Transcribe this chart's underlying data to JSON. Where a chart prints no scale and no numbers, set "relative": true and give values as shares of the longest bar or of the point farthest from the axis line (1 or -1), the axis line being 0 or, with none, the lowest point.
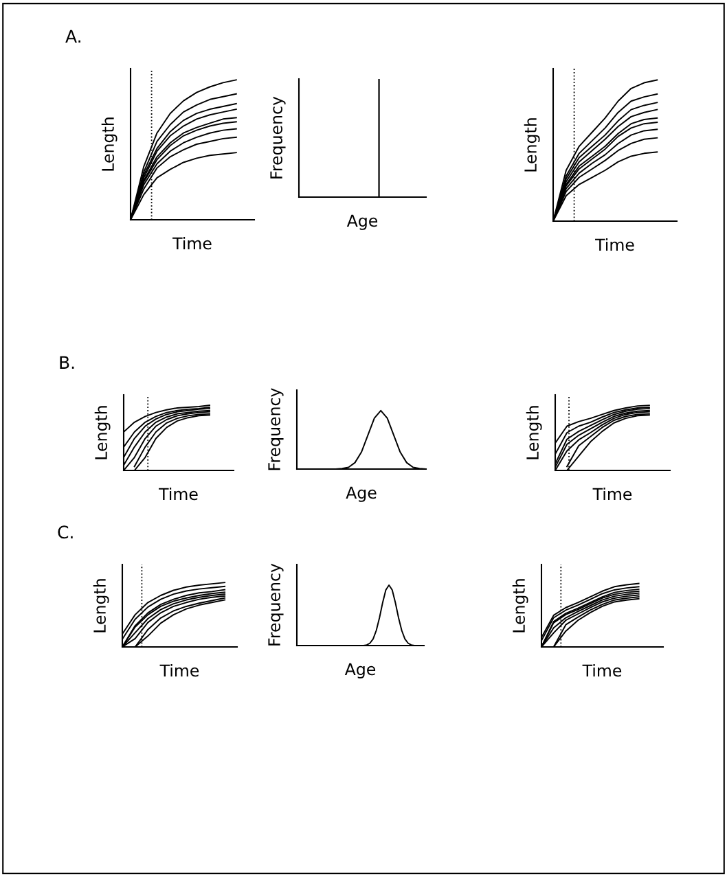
{
  "chart_data": [
    {
      "type": "line",
      "title": "A.",
      "xlabel": "Time",
      "ylabel": "Length",
      "relative": true,
      "categories": [
        null,
        null,
        null,
        null,
        null,
        null,
        null,
        null,
        null
      ],
      "series": [
        {
          "color": "#000000",
          "values": [
            0,
            0.38,
            0.62,
            0.76,
            0.85,
            0.91,
            0.95,
            0.98,
            1
          ]
        },
        {
          "color": "#000000",
          "values": [
            0,
            0.34,
            0.56,
            0.68,
            0.77,
            0.82,
            0.86,
            0.88,
            0.9
          ]
        },
        {
          "color": "#000000",
          "values": [
            0,
            0.32,
            0.51,
            0.63,
            0.71,
            0.76,
            0.79,
            0.81,
            0.83
          ]
        },
        {
          "color": "#000000",
          "values": [
            0,
            0.3,
            0.49,
            0.6,
            0.67,
            0.72,
            0.75,
            0.77,
            0.79
          ]
        },
        {
          "color": "#000000",
          "values": [
            0,
            0.28,
            0.45,
            0.55,
            0.62,
            0.66,
            0.69,
            0.72,
            0.73
          ]
        },
        {
          "color": "#000000",
          "values": [
            0,
            0.27,
            0.43,
            0.53,
            0.6,
            0.64,
            0.67,
            0.69,
            0.7
          ]
        },
        {
          "color": "#000000",
          "values": [
            0,
            0.25,
            0.4,
            0.49,
            0.55,
            0.59,
            0.62,
            0.64,
            0.65
          ]
        },
        {
          "color": "#000000",
          "values": [
            0,
            0.22,
            0.37,
            0.45,
            0.5,
            0.54,
            0.56,
            0.58,
            0.59
          ]
        },
        {
          "color": "#000000",
          "values": [
            0,
            0.18,
            0.3,
            0.36,
            0.41,
            0.44,
            0.46,
            0.47,
            0.48
          ]
        }
      ]
    },
    {
      "type": "bar",
      "xlabel": "Age",
      "ylabel": "Frequency",
      "relative": true,
      "categories": [
        null
      ],
      "values": [
        1
      ],
      "color": "#000000"
    },
    {
      "type": "line",
      "xlabel": "Time",
      "ylabel": "Length",
      "relative": true,
      "categories": [
        null,
        null,
        null,
        null,
        null,
        null,
        null,
        null,
        null
      ],
      "series": [
        {
          "color": "#000000",
          "values": [
            0,
            0.36,
            0.53,
            0.63,
            0.73,
            0.85,
            0.94,
            0.98,
            1
          ]
        },
        {
          "color": "#000000",
          "values": [
            0,
            0.32,
            0.48,
            0.57,
            0.66,
            0.77,
            0.85,
            0.88,
            0.9
          ]
        },
        {
          "color": "#000000",
          "values": [
            0,
            0.3,
            0.45,
            0.53,
            0.61,
            0.71,
            0.79,
            0.82,
            0.84
          ]
        },
        {
          "color": "#000000",
          "values": [
            0,
            0.28,
            0.42,
            0.5,
            0.58,
            0.67,
            0.74,
            0.77,
            0.79
          ]
        },
        {
          "color": "#000000",
          "values": [
            0,
            0.26,
            0.39,
            0.46,
            0.53,
            0.62,
            0.69,
            0.72,
            0.73
          ]
        },
        {
          "color": "#000000",
          "values": [
            0,
            0.25,
            0.37,
            0.44,
            0.51,
            0.6,
            0.66,
            0.69,
            0.7
          ]
        },
        {
          "color": "#000000",
          "values": [
            0,
            0.23,
            0.34,
            0.41,
            0.47,
            0.55,
            0.61,
            0.64,
            0.65
          ]
        },
        {
          "color": "#000000",
          "values": [
            0,
            0.21,
            0.31,
            0.37,
            0.43,
            0.5,
            0.55,
            0.58,
            0.59
          ]
        },
        {
          "color": "#000000",
          "values": [
            0,
            0.18,
            0.26,
            0.31,
            0.36,
            0.42,
            0.46,
            0.48,
            0.49
          ]
        }
      ]
    },
    {
      "type": "line",
      "title": "B.",
      "xlabel": "Time",
      "ylabel": "Length",
      "relative": true,
      "categories": [
        null,
        null,
        null,
        null,
        null,
        null,
        null,
        null,
        null
      ],
      "series": [
        {
          "color": "#000000",
          "values": [
            0.59,
            0.74,
            0.83,
            0.89,
            0.93,
            0.96,
            0.97,
            0.98,
            1
          ]
        },
        {
          "color": "#000000",
          "values": [
            0.36,
            0.59,
            0.74,
            0.83,
            0.89,
            0.92,
            0.94,
            0.95,
            0.97
          ]
        },
        {
          "color": "#000000",
          "values": [
            0.2,
            0.49,
            0.68,
            0.79,
            0.86,
            0.9,
            0.92,
            0.94,
            0.95
          ]
        },
        {
          "color": "#000000",
          "values": [
            0.08,
            0.36,
            0.59,
            0.74,
            0.82,
            0.87,
            0.89,
            0.91,
            0.92
          ]
        },
        {
          "color": "#000000",
          "values": [
            0,
            0.2,
            0.49,
            0.68,
            0.78,
            0.84,
            0.87,
            0.89,
            0.9
          ]
        },
        {
          "color": "#000000",
          "values": [
            null,
            0.06,
            0.36,
            0.59,
            0.73,
            0.8,
            0.84,
            0.86,
            0.87
          ]
        },
        {
          "color": "#000000",
          "values": [
            null,
            0,
            0.2,
            0.49,
            0.66,
            0.76,
            0.81,
            0.84,
            0.85
          ]
        }
      ]
    },
    {
      "type": "line",
      "xlabel": "Age",
      "ylabel": "Frequency",
      "relative": true,
      "categories": [
        null,
        null,
        null,
        null,
        null,
        null,
        null,
        null,
        null,
        null,
        null,
        null,
        null,
        null,
        null,
        null,
        null,
        null,
        null,
        null,
        null
      ],
      "series": [
        {
          "color": "#000000",
          "values": [
            0,
            0,
            0,
            0,
            0,
            0,
            0,
            0.01,
            0.03,
            0.11,
            0.29,
            0.58,
            0.87,
            1,
            0.87,
            0.58,
            0.29,
            0.11,
            0.03,
            0.01,
            0
          ]
        }
      ]
    },
    {
      "type": "line",
      "xlabel": "Time",
      "ylabel": "Length",
      "relative": true,
      "categories": [
        null,
        null,
        null,
        null,
        null,
        null,
        null,
        null,
        null
      ],
      "series": [
        {
          "color": "#000000",
          "values": [
            0.42,
            0.68,
            0.75,
            0.8,
            0.86,
            0.92,
            0.96,
            0.99,
            1
          ]
        },
        {
          "color": "#000000",
          "values": [
            0.25,
            0.58,
            0.68,
            0.74,
            0.82,
            0.89,
            0.93,
            0.96,
            0.97
          ]
        },
        {
          "color": "#000000",
          "values": [
            0.1,
            0.48,
            0.6,
            0.69,
            0.78,
            0.86,
            0.91,
            0.94,
            0.95
          ]
        },
        {
          "color": "#000000",
          "values": [
            0.05,
            0.4,
            0.54,
            0.64,
            0.74,
            0.83,
            0.88,
            0.91,
            0.92
          ]
        },
        {
          "color": "#000000",
          "values": [
            0,
            0.3,
            0.47,
            0.58,
            0.7,
            0.8,
            0.86,
            0.89,
            0.9
          ]
        },
        {
          "color": "#000000",
          "values": [
            null,
            0.06,
            0.38,
            0.52,
            0.66,
            0.77,
            0.83,
            0.86,
            0.87
          ]
        },
        {
          "color": "#000000",
          "values": [
            null,
            0,
            0.22,
            0.44,
            0.6,
            0.73,
            0.8,
            0.84,
            0.85
          ]
        }
      ]
    },
    {
      "type": "line",
      "title": "C.",
      "xlabel": "Time",
      "ylabel": "Length",
      "relative": true,
      "categories": [
        null,
        null,
        null,
        null,
        null,
        null,
        null,
        null,
        null
      ],
      "series": [
        {
          "color": "#000000",
          "values": [
            0.2,
            0.5,
            0.69,
            0.8,
            0.88,
            0.93,
            0.96,
            0.98,
            1
          ]
        },
        {
          "color": "#000000",
          "values": [
            0.12,
            0.43,
            0.62,
            0.74,
            0.82,
            0.87,
            0.9,
            0.92,
            0.94
          ]
        },
        {
          "color": "#000000",
          "values": [
            0,
            0.33,
            0.53,
            0.66,
            0.74,
            0.8,
            0.84,
            0.86,
            0.89
          ]
        },
        {
          "color": "#000000",
          "values": [
            0,
            0.31,
            0.5,
            0.63,
            0.71,
            0.76,
            0.8,
            0.83,
            0.85
          ]
        },
        {
          "color": "#000000",
          "values": [
            0,
            0.22,
            0.44,
            0.58,
            0.67,
            0.73,
            0.77,
            0.8,
            0.82
          ]
        },
        {
          "color": "#000000",
          "values": [
            0,
            0.13,
            0.38,
            0.53,
            0.63,
            0.69,
            0.74,
            0.77,
            0.79
          ]
        },
        {
          "color": "#000000",
          "values": [
            null,
            0,
            0.27,
            0.45,
            0.56,
            0.63,
            0.68,
            0.72,
            0.76
          ]
        },
        {
          "color": "#000000",
          "values": [
            null,
            0,
            0.17,
            0.37,
            0.5,
            0.59,
            0.65,
            0.69,
            0.73
          ]
        }
      ]
    },
    {
      "type": "line",
      "xlabel": "Age",
      "ylabel": "Frequency",
      "relative": true,
      "categories": [
        null,
        null,
        null,
        null,
        null,
        null,
        null,
        null,
        null,
        null,
        null,
        null,
        null,
        null,
        null,
        null,
        null,
        null,
        null,
        null,
        null,
        null,
        null,
        null,
        null,
        null,
        null,
        null,
        null,
        null,
        null,
        null,
        null,
        null,
        null,
        null,
        null,
        null,
        null,
        null,
        null
      ],
      "series": [
        {
          "color": "#000000",
          "values": [
            0,
            0,
            0,
            0,
            0,
            0,
            0,
            0,
            0,
            0,
            0,
            0,
            0,
            0,
            0,
            0,
            0,
            0,
            0,
            0,
            0,
            0,
            0.01,
            0.04,
            0.11,
            0.25,
            0.46,
            0.71,
            0.92,
            1,
            0.92,
            0.71,
            0.46,
            0.25,
            0.11,
            0.04,
            0.01,
            0,
            0,
            0,
            0
          ]
        }
      ]
    },
    {
      "type": "line",
      "xlabel": "Time",
      "ylabel": "Length",
      "relative": true,
      "categories": [
        null,
        null,
        null,
        null,
        null,
        null,
        null,
        null,
        null
      ],
      "series": [
        {
          "color": "#000000",
          "values": [
            0.15,
            0.5,
            0.62,
            0.7,
            0.79,
            0.88,
            0.95,
            0.98,
            1
          ]
        },
        {
          "color": "#000000",
          "values": [
            0.1,
            0.46,
            0.58,
            0.66,
            0.75,
            0.84,
            0.9,
            0.93,
            0.95
          ]
        },
        {
          "color": "#000000",
          "values": [
            0,
            0.4,
            0.53,
            0.61,
            0.7,
            0.79,
            0.86,
            0.89,
            0.91
          ]
        },
        {
          "color": "#000000",
          "values": [
            0,
            0.38,
            0.51,
            0.59,
            0.68,
            0.77,
            0.83,
            0.86,
            0.88
          ]
        },
        {
          "color": "#000000",
          "values": [
            0,
            0.3,
            0.46,
            0.56,
            0.65,
            0.74,
            0.8,
            0.83,
            0.85
          ]
        },
        {
          "color": "#000000",
          "values": [
            0,
            0.22,
            0.42,
            0.52,
            0.62,
            0.71,
            0.77,
            0.8,
            0.82
          ]
        },
        {
          "color": "#000000",
          "values": [
            null,
            0,
            0.35,
            0.47,
            0.58,
            0.67,
            0.74,
            0.77,
            0.79
          ]
        },
        {
          "color": "#000000",
          "values": [
            null,
            0,
            0.25,
            0.42,
            0.54,
            0.64,
            0.71,
            0.74,
            0.76
          ]
        }
      ]
    }
  ]
}
